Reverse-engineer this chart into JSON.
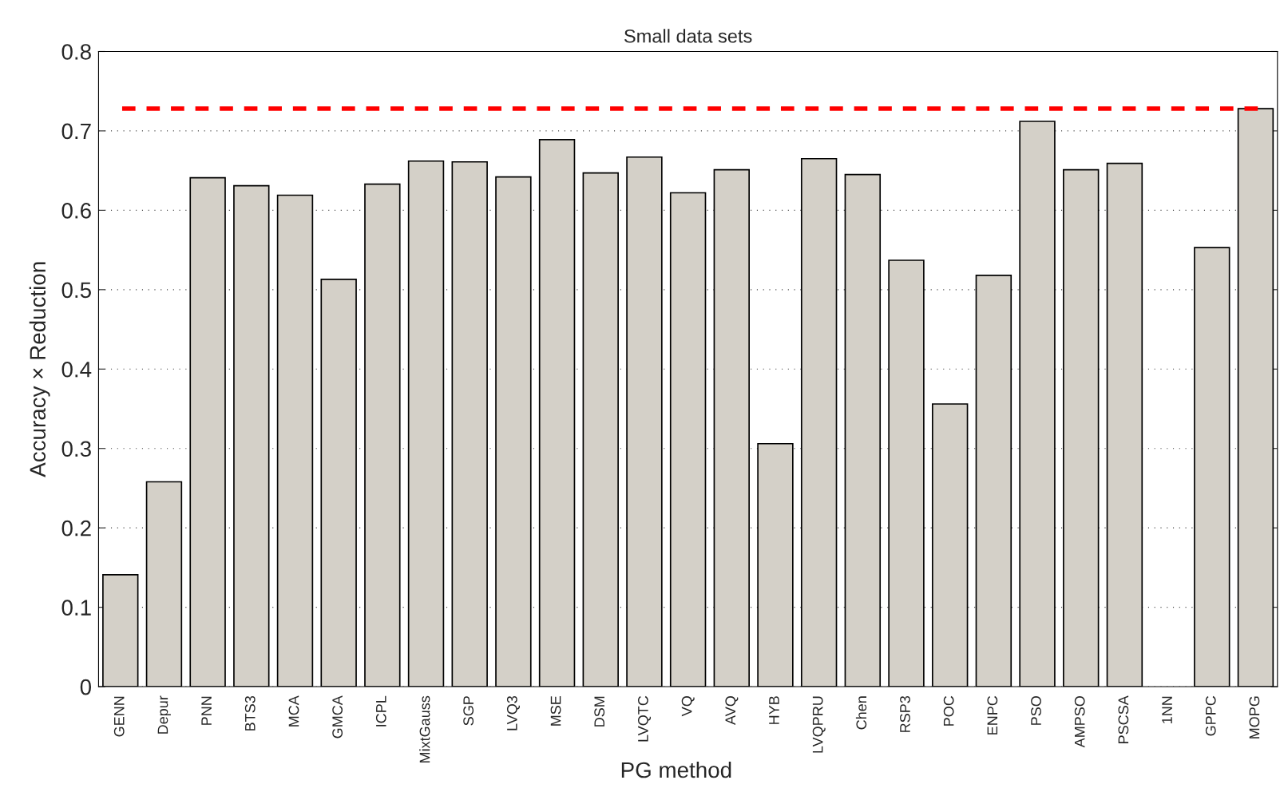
{
  "chart_data": {
    "type": "bar",
    "title": "Small data sets",
    "xlabel": "PG method",
    "ylabel": "Accuracy × Reduction",
    "categories": [
      "GENN",
      "Depur",
      "PNN",
      "BTS3",
      "MCA",
      "GMCA",
      "ICPL",
      "MixtGauss",
      "SGP",
      "LVQ3",
      "MSE",
      "DSM",
      "LVQTC",
      "VQ",
      "AVQ",
      "HYB",
      "LVQPRU",
      "Chen",
      "RSP3",
      "POC",
      "ENPC",
      "PSO",
      "AMPSO",
      "PSCSA",
      "1NN",
      "GPPC",
      "MOPG"
    ],
    "values": [
      0.141,
      0.258,
      0.641,
      0.631,
      0.619,
      0.513,
      0.633,
      0.662,
      0.661,
      0.642,
      0.689,
      0.647,
      0.667,
      0.622,
      0.651,
      0.306,
      0.665,
      0.645,
      0.537,
      0.356,
      0.518,
      0.712,
      0.651,
      0.659,
      0,
      0.553,
      0.728
    ],
    "color": "#d4d0c8",
    "ylim": [
      0,
      0.8
    ],
    "yticks": [
      0,
      0.1,
      0.2,
      0.3,
      0.4,
      0.5,
      0.6,
      0.7,
      0.8
    ],
    "ref_lines": [
      {
        "axis": "y",
        "value": 0.728,
        "color": "#ff0000",
        "line_style": "dashed"
      }
    ],
    "grid": "y"
  }
}
